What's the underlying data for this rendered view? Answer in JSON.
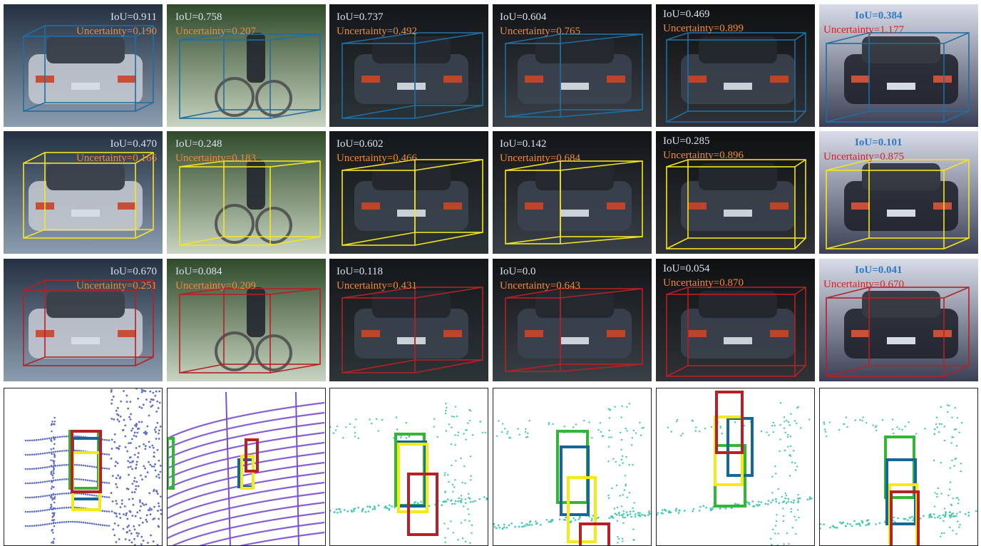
{
  "rows": [
    {
      "name": "row-1",
      "box_color": "#1f6fa0",
      "cells": [
        {
          "iou": "IoU=0.911",
          "unc": "Uncertainty=0.190"
        },
        {
          "iou": "IoU=0.758",
          "unc": "Uncertainty=0.207"
        },
        {
          "iou": "IoU=0.737",
          "unc": "Uncertainty=0.492"
        },
        {
          "iou": "IoU=0.604",
          "unc": "Uncertainty=0.765"
        },
        {
          "iou": "IoU=0.469",
          "unc": "Uncertainty=0.899"
        },
        {
          "iou": "IoU=0.384",
          "unc": "Uncertainty=1.177"
        }
      ]
    },
    {
      "name": "row-2",
      "box_color": "#f3e620",
      "cells": [
        {
          "iou": "IoU=0.470",
          "unc": "Uncertainty=0.166"
        },
        {
          "iou": "IoU=0.248",
          "unc": "Uncertainty=0.183"
        },
        {
          "iou": "IoU=0.602",
          "unc": "Uncertainty=0.466"
        },
        {
          "iou": "IoU=0.142",
          "unc": "Uncertainty=0.684"
        },
        {
          "iou": "IoU=0.285",
          "unc": "Uncertainty=0.896"
        },
        {
          "iou": "IoU=0.101",
          "unc": "Uncertainty=0.875"
        }
      ]
    },
    {
      "name": "row-3",
      "box_color": "#b52124",
      "cells": [
        {
          "iou": "IoU=0.670",
          "unc": "Uncertainty=0.251"
        },
        {
          "iou": "IoU=0.084",
          "unc": "Uncertainty=0.209"
        },
        {
          "iou": "IoU=0.118",
          "unc": "Uncertainty=0.431"
        },
        {
          "iou": "IoU=0.0",
          "unc": "Uncertainty=0.643"
        },
        {
          "iou": "IoU=0.054",
          "unc": "Uncertainty=0.870"
        },
        {
          "iou": "IoU=0.041",
          "unc": "Uncertainty=0.670"
        }
      ]
    }
  ],
  "colors": {
    "ground_truth": "#33b535",
    "method_a": "#15669a",
    "method_b": "#f5ea17",
    "method_c": "#b52124",
    "iou_text": "#d9e2ee",
    "uncertainty_text": "#f08a3c",
    "highlight_iou": "#2f78c4",
    "highlight_uncertainty": "#d8221c"
  },
  "lidar_point_colors": [
    "#5f6fc9",
    "#7a4fd1",
    "#3fc9b0",
    "#3fc9b0",
    "#3fc9b0",
    "#3fc9b0"
  ]
}
